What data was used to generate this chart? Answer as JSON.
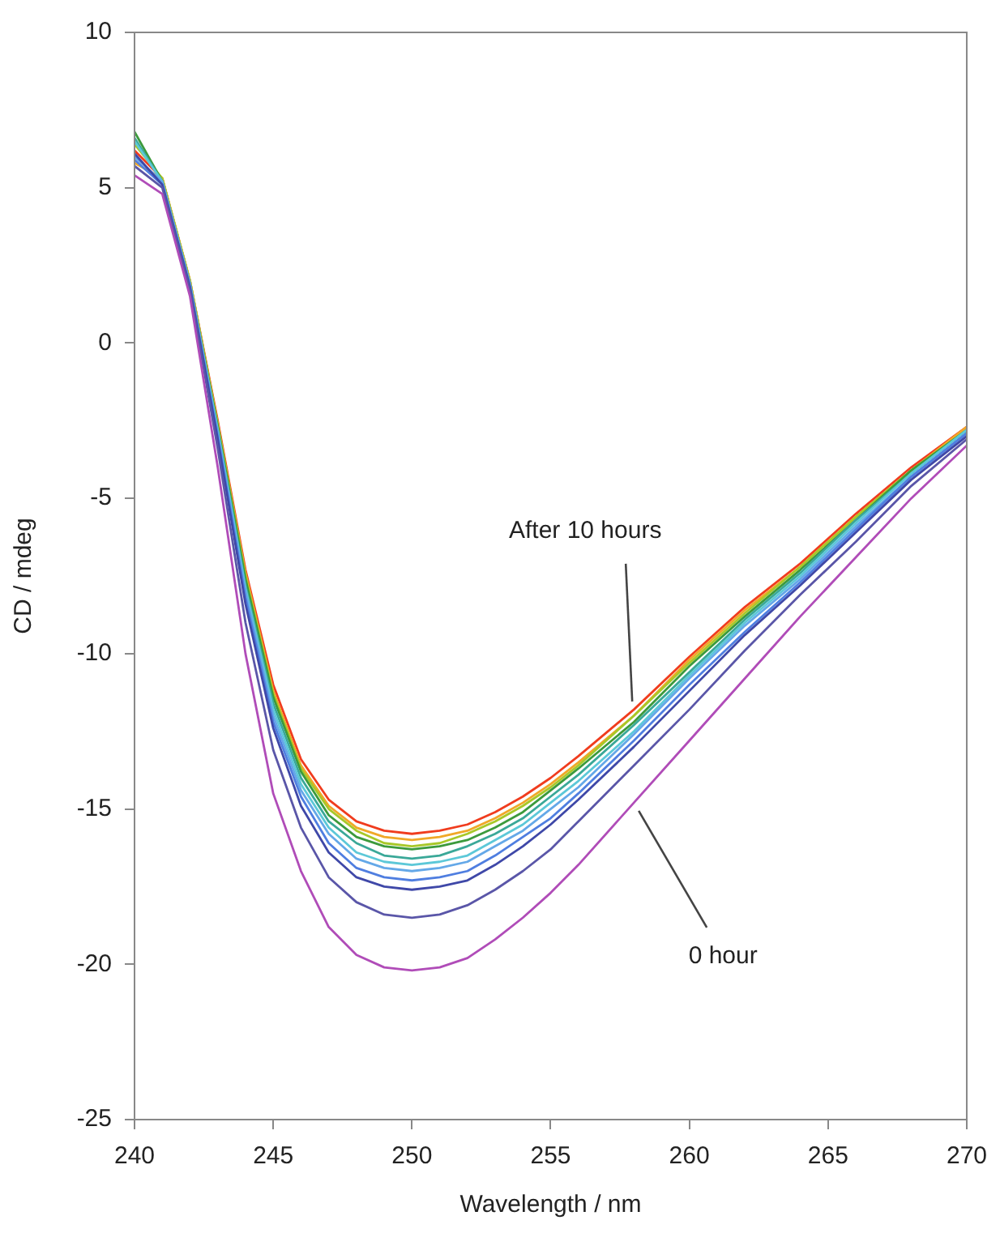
{
  "chart_data": {
    "type": "line",
    "xlabel": "Wavelength / nm",
    "ylabel": "CD / mdeg",
    "x": [
      240,
      241,
      242,
      243,
      244,
      245,
      246,
      247,
      248,
      249,
      250,
      251,
      252,
      253,
      254,
      255,
      256,
      258,
      260,
      262,
      264,
      266,
      268,
      270
    ],
    "xlim": [
      240,
      270
    ],
    "xticks": [
      240,
      245,
      250,
      255,
      260,
      265,
      270
    ],
    "ylim": [
      -25,
      10
    ],
    "yticks": [
      -25,
      -20,
      -15,
      -10,
      -5,
      0,
      5,
      10
    ],
    "grid": false,
    "legend": false,
    "marker": "none",
    "line_style": "solid",
    "series": [
      {
        "color": "#b04cb8",
        "values": [
          5.4,
          4.8,
          1.5,
          -4.0,
          -10.0,
          -14.5,
          -17.0,
          -18.8,
          -19.7,
          -20.1,
          -20.2,
          -20.1,
          -19.8,
          -19.2,
          -18.5,
          -17.7,
          -16.8,
          -14.8,
          -12.8,
          -10.8,
          -8.8,
          -6.9,
          -5.0,
          -3.3
        ]
      },
      {
        "color": "#5a56a8",
        "values": [
          5.7,
          5.0,
          1.7,
          -3.4,
          -9.0,
          -13.1,
          -15.6,
          -17.2,
          -18.0,
          -18.4,
          -18.5,
          -18.4,
          -18.1,
          -17.6,
          -17.0,
          -16.3,
          -15.4,
          -13.6,
          -11.8,
          -9.9,
          -8.1,
          -6.4,
          -4.6,
          -3.1
        ]
      },
      {
        "color": "#3f48a8",
        "values": [
          6.1,
          5.1,
          1.8,
          -3.1,
          -8.4,
          -12.4,
          -14.9,
          -16.4,
          -17.2,
          -17.5,
          -17.6,
          -17.5,
          -17.3,
          -16.8,
          -16.2,
          -15.5,
          -14.7,
          -13.0,
          -11.2,
          -9.4,
          -7.8,
          -6.1,
          -4.4,
          -3.0
        ]
      },
      {
        "color": "#4f7ee0",
        "values": [
          5.9,
          5.1,
          1.8,
          -3.0,
          -8.2,
          -12.2,
          -14.6,
          -16.1,
          -16.9,
          -17.2,
          -17.3,
          -17.2,
          -17.0,
          -16.5,
          -15.9,
          -15.3,
          -14.5,
          -12.8,
          -11.0,
          -9.3,
          -7.7,
          -6.0,
          -4.3,
          -2.9
        ]
      },
      {
        "color": "#64a8e8",
        "values": [
          6.0,
          5.2,
          1.9,
          -2.9,
          -8.0,
          -12.0,
          -14.4,
          -15.8,
          -16.6,
          -16.9,
          -17.0,
          -16.9,
          -16.7,
          -16.2,
          -15.7,
          -15.0,
          -14.3,
          -12.6,
          -10.8,
          -9.1,
          -7.6,
          -5.9,
          -4.3,
          -2.9
        ]
      },
      {
        "color": "#5cc8d8",
        "values": [
          6.5,
          5.2,
          1.9,
          -2.8,
          -7.9,
          -11.8,
          -14.2,
          -15.6,
          -16.4,
          -16.7,
          -16.8,
          -16.7,
          -16.5,
          -16.0,
          -15.5,
          -14.8,
          -14.1,
          -12.5,
          -10.7,
          -9.0,
          -7.5,
          -5.8,
          -4.2,
          -2.8
        ]
      },
      {
        "color": "#3aa898",
        "values": [
          6.6,
          5.2,
          1.9,
          -2.8,
          -7.8,
          -11.6,
          -14.0,
          -15.4,
          -16.1,
          -16.5,
          -16.6,
          -16.5,
          -16.2,
          -15.8,
          -15.3,
          -14.6,
          -13.9,
          -12.3,
          -10.6,
          -8.9,
          -7.4,
          -5.7,
          -4.2,
          -2.8
        ]
      },
      {
        "color": "#3c9a3c",
        "values": [
          6.8,
          5.2,
          1.9,
          -2.7,
          -7.6,
          -11.4,
          -13.8,
          -15.2,
          -15.9,
          -16.2,
          -16.3,
          -16.2,
          -16.0,
          -15.6,
          -15.1,
          -14.4,
          -13.7,
          -12.2,
          -10.4,
          -8.8,
          -7.3,
          -5.7,
          -4.1,
          -2.8
        ]
      },
      {
        "color": "#a8c828",
        "values": [
          6.4,
          5.3,
          2.0,
          -2.6,
          -7.5,
          -11.3,
          -13.7,
          -15.0,
          -15.7,
          -16.1,
          -16.2,
          -16.1,
          -15.8,
          -15.4,
          -14.9,
          -14.3,
          -13.6,
          -12.0,
          -10.3,
          -8.7,
          -7.2,
          -5.6,
          -4.1,
          -2.8
        ]
      },
      {
        "color": "#f0a828",
        "values": [
          5.8,
          5.3,
          2.0,
          -2.6,
          -7.4,
          -11.2,
          -13.6,
          -14.9,
          -15.6,
          -15.9,
          -16.0,
          -15.9,
          -15.7,
          -15.3,
          -14.8,
          -14.2,
          -13.5,
          -12.0,
          -10.2,
          -8.6,
          -7.2,
          -5.6,
          -4.1,
          -2.7
        ]
      },
      {
        "color": "#f03c1e",
        "values": [
          6.2,
          5.3,
          2.0,
          -2.5,
          -7.3,
          -11.0,
          -13.4,
          -14.7,
          -15.4,
          -15.7,
          -15.8,
          -15.7,
          -15.5,
          -15.1,
          -14.6,
          -14.0,
          -13.3,
          -11.8,
          -10.1,
          -8.5,
          -7.1,
          -5.5,
          -4.0,
          -2.7
        ]
      }
    ],
    "annotations": [
      {
        "text": "After 10 hours",
        "x": 258,
        "y": -11.8
      },
      {
        "text": "0 hour",
        "x": 258,
        "y": -14.8
      }
    ]
  }
}
